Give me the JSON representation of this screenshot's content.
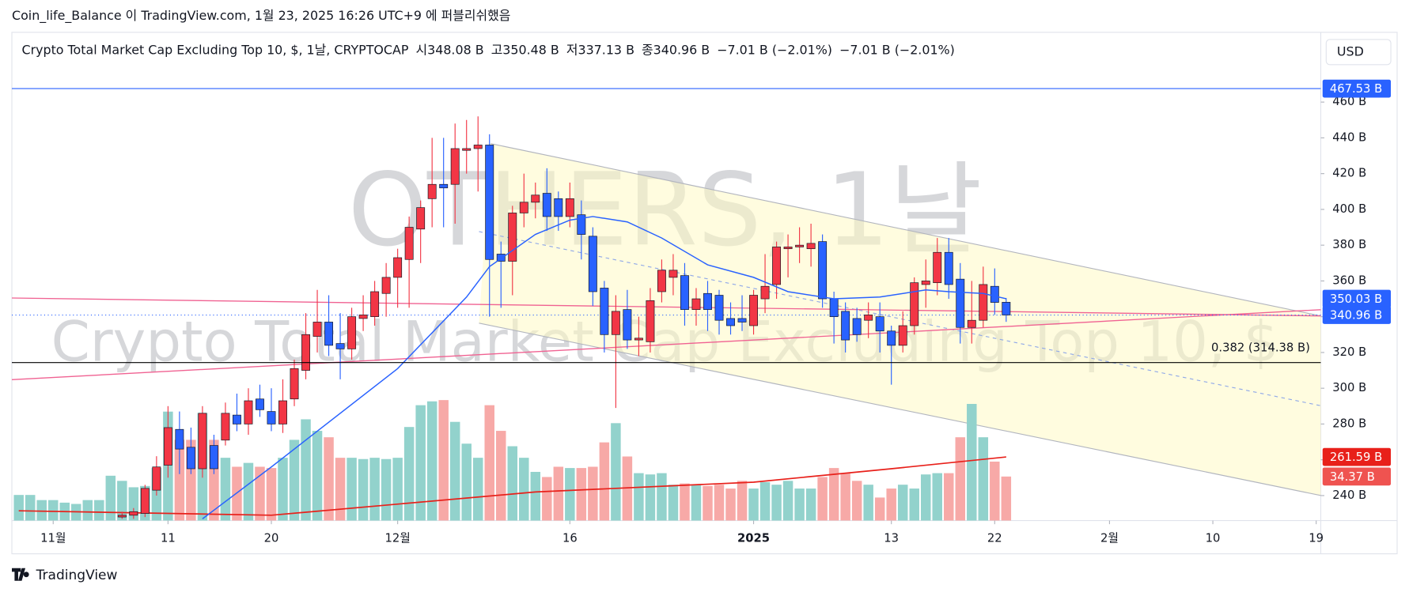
{
  "chart_data": {
    "type": "candlestick",
    "header": "Coin_life_Balance 이 TradingView.com, 1월 23, 2025 16:26 UTC+9 에 퍼블리쉬했음",
    "title": "Crypto Total Market Cap Excluding Top 10, $, 1날, CRYPTOCAP",
    "ohlc_text": [
      "시348.08 B",
      "고350.48 B",
      "저337.13 B",
      "종340.96 B",
      "−7.01 B (−2.01%)",
      "−7.01 B (−2.01%)"
    ],
    "currency": "USD",
    "brand": "TradingView",
    "watermark": [
      "OTHERS, 1날",
      "Crypto Total Market Cap Excluding Top 10, $"
    ],
    "xlim": [
      -3.6,
      110.4
    ],
    "xticks": [
      {
        "value": 0,
        "label": "11월"
      },
      {
        "value": 10,
        "label": "11"
      },
      {
        "value": 19,
        "label": "20"
      },
      {
        "value": 30,
        "label": "12월"
      },
      {
        "value": 45,
        "label": "16"
      },
      {
        "value": 61,
        "label": "2025"
      },
      {
        "value": 73,
        "label": "13"
      },
      {
        "value": 82,
        "label": "22"
      },
      {
        "value": 92,
        "label": "2월"
      },
      {
        "value": 101,
        "label": "10"
      },
      {
        "value": 110,
        "label": "19"
      }
    ],
    "ylim": [
      226,
      497
    ],
    "yticks": [
      {
        "value": 240,
        "label": "240 B"
      },
      {
        "value": 260,
        "label": "260 B"
      },
      {
        "value": 280,
        "label": "280 B"
      },
      {
        "value": 300,
        "label": "300 B"
      },
      {
        "value": 320,
        "label": "320 B"
      },
      {
        "value": 340,
        "label": "340 B"
      },
      {
        "value": 360,
        "label": "360 B"
      },
      {
        "value": 380,
        "label": "380 B"
      },
      {
        "value": 400,
        "label": "400 B"
      },
      {
        "value": 420,
        "label": "420 B"
      },
      {
        "value": 440,
        "label": "440 B"
      },
      {
        "value": 460,
        "label": "460 B"
      }
    ],
    "vlim": [
      0,
      378
    ],
    "up_color": "#f23645",
    "down_color": "#2962ff",
    "vol_up_color": "#92d2cc",
    "vol_down_color": "#f7a9a7",
    "x": [
      -3,
      -2,
      -1,
      0,
      1,
      2,
      3,
      4,
      5,
      6,
      7,
      8,
      9,
      10,
      11,
      12,
      13,
      14,
      15,
      16,
      17,
      18,
      19,
      20,
      21,
      22,
      23,
      24,
      25,
      26,
      27,
      28,
      29,
      30,
      31,
      32,
      33,
      34,
      35,
      36,
      37,
      38,
      39,
      40,
      41,
      42,
      43,
      44,
      45,
      46,
      47,
      48,
      49,
      50,
      51,
      52,
      53,
      54,
      55,
      56,
      57,
      58,
      59,
      60,
      61,
      62,
      63,
      64,
      65,
      66,
      67,
      68,
      69,
      70,
      71,
      72,
      73,
      74,
      75,
      76,
      77,
      78,
      79,
      80,
      81,
      82,
      83
    ],
    "open": [
      null,
      null,
      null,
      null,
      null,
      null,
      null,
      null,
      null,
      228,
      229,
      230,
      243,
      257,
      277,
      267,
      255,
      268,
      271,
      285,
      280,
      294,
      287,
      280,
      294,
      310,
      329,
      337,
      325,
      322,
      339,
      340,
      353,
      362,
      372,
      389,
      406,
      414,
      414,
      433,
      434,
      436,
      375,
      371,
      398,
      404,
      409,
      406,
      396,
      397,
      385,
      356,
      330,
      344,
      327,
      326,
      354,
      362,
      363,
      344,
      353,
      352,
      339,
      339,
      335,
      350,
      358,
      378,
      379,
      378,
      382,
      350,
      343,
      339,
      338,
      340,
      332,
      324,
      335,
      358,
      359,
      376,
      361,
      334,
      338,
      357,
      348.08
    ],
    "high": [
      null,
      null,
      null,
      null,
      null,
      null,
      null,
      null,
      null,
      231,
      233,
      246,
      262,
      290,
      287,
      278,
      290,
      274,
      292,
      297,
      300,
      302,
      300,
      305,
      316,
      342,
      355,
      352,
      342,
      345,
      352,
      360,
      370,
      378,
      396,
      405,
      440,
      440,
      448,
      450,
      452,
      442,
      382,
      402,
      420,
      415,
      423,
      410,
      415,
      405,
      390,
      360,
      352,
      355,
      340,
      356,
      372,
      375,
      370,
      356,
      360,
      355,
      348,
      352,
      355,
      375,
      382,
      386,
      390,
      392,
      386,
      354,
      348,
      345,
      348,
      348,
      335,
      343,
      362,
      372,
      384,
      384,
      370,
      360,
      368,
      367,
      350.48
    ],
    "low": [
      null,
      null,
      null,
      null,
      null,
      null,
      null,
      null,
      null,
      227,
      227,
      228,
      240,
      250,
      252,
      252,
      250,
      252,
      268,
      276,
      274,
      284,
      276,
      275,
      290,
      305,
      320,
      318,
      305,
      316,
      332,
      335,
      340,
      345,
      345,
      370,
      390,
      390,
      392,
      420,
      410,
      340,
      345,
      352,
      390,
      395,
      388,
      388,
      390,
      372,
      346,
      320,
      289,
      322,
      318,
      320,
      348,
      352,
      335,
      335,
      332,
      330,
      330,
      332,
      330,
      342,
      350,
      362,
      370,
      368,
      345,
      325,
      320,
      326,
      328,
      320,
      302,
      320,
      330,
      345,
      352,
      350,
      325,
      325,
      334,
      341,
      337.13
    ],
    "close": [
      null,
      null,
      null,
      null,
      null,
      null,
      null,
      null,
      null,
      229,
      231,
      244,
      256,
      278,
      266,
      255,
      286,
      255,
      286,
      280,
      293,
      288,
      280,
      293,
      311,
      330,
      337,
      324,
      322,
      340,
      341,
      354,
      362,
      373,
      390,
      401,
      414,
      412,
      434,
      434,
      436,
      372,
      371,
      398,
      404,
      408,
      396,
      396,
      406,
      386,
      354,
      330,
      343,
      327,
      328,
      349,
      366,
      366,
      344,
      350,
      344,
      338,
      335,
      337,
      352,
      357,
      379,
      379,
      380,
      381,
      350,
      340,
      327,
      330,
      341,
      332,
      324,
      335,
      359,
      360,
      376,
      358,
      334,
      338,
      358,
      348,
      340.96
    ],
    "close_label": "340.96 B",
    "volume": [
      20,
      20,
      16,
      16,
      14,
      13,
      16,
      16,
      35,
      31,
      26,
      27,
      41,
      85,
      63,
      63,
      84,
      63,
      49,
      42,
      45,
      42,
      41,
      49,
      63,
      79,
      70,
      65,
      49,
      49,
      48,
      49,
      48,
      49,
      73,
      90,
      93,
      94,
      77,
      60,
      49,
      90,
      70,
      58,
      49,
      38,
      34,
      42,
      41,
      41,
      42,
      61,
      76,
      50,
      37,
      36,
      37,
      28,
      29,
      28,
      27,
      28,
      25,
      31,
      25,
      30,
      28,
      31,
      25,
      25,
      34,
      41,
      37,
      31,
      28,
      18,
      25,
      28,
      25,
      36,
      37,
      37,
      65,
      91,
      65,
      46,
      34.37
    ],
    "volume_label": "34.37 B",
    "ma": {
      "color": "#2962ff",
      "x": [
        13,
        19,
        30,
        36,
        38,
        42,
        45,
        47,
        50,
        53,
        57,
        61,
        64,
        68,
        72,
        76,
        78,
        81,
        83
      ],
      "values": [
        227,
        256,
        311,
        351,
        368,
        386,
        394,
        396,
        393,
        384,
        369,
        362,
        354,
        350,
        351,
        355,
        354,
        353,
        350.03
      ],
      "last_label": "350.03 B"
    },
    "ma2": {
      "color": "#e8201a",
      "x": [
        -3,
        19,
        42,
        61,
        73,
        83
      ],
      "values": [
        231.5,
        229,
        242,
        247.5,
        255,
        261.59
      ],
      "last_label": "261.59 B"
    },
    "alert_line": {
      "value": 467.53,
      "label": "467.53 B",
      "color": "#2962ff"
    },
    "fib_level": {
      "value": 314.38,
      "label": "0.382 (314.38 B)",
      "color": "#000000"
    }
  }
}
